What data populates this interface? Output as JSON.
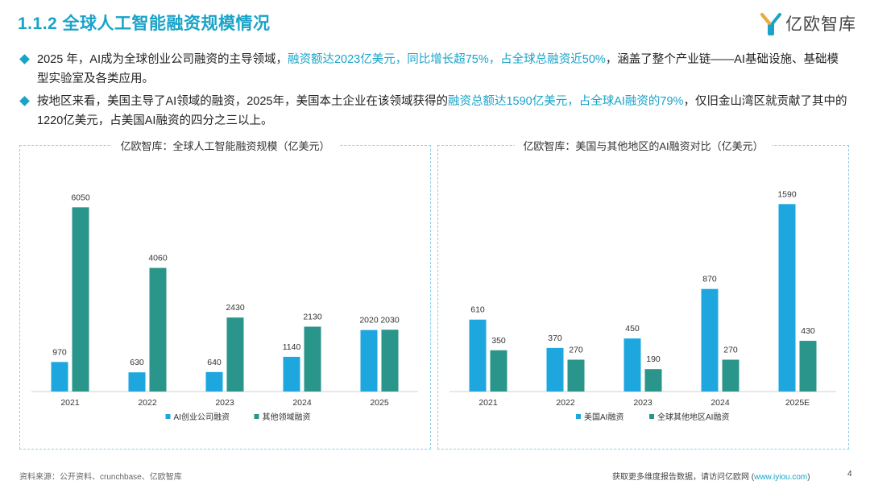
{
  "header": {
    "title": "1.1.2 全球人工智能融资规模情况",
    "logo_text": "亿欧智库"
  },
  "bullets": [
    {
      "segments": [
        {
          "text": "2025 年，AI成为全球创业公司融资的主导领域，",
          "hl": false
        },
        {
          "text": "融资额达2023亿美元，同比增长超75%，占全球总融资近50%",
          "hl": true
        },
        {
          "text": "，涵盖了整个产业链——AI基础设施、基础模型实验室及各类应用。",
          "hl": false
        }
      ]
    },
    {
      "segments": [
        {
          "text": "按地区来看，美国主导了AI领域的融资，2025年，美国本土企业在该领域获得的",
          "hl": false
        },
        {
          "text": "融资总额达1590亿美元，占全球AI融资的79%",
          "hl": true
        },
        {
          "text": "，仅旧金山湾区就贡献了其中的1220亿美元，占美国AI融资的四分之三以上。",
          "hl": false
        }
      ]
    }
  ],
  "colors": {
    "blue": "#1ea7df",
    "teal": "#2a958a",
    "accent": "#1aa3c8"
  },
  "chart_data": [
    {
      "type": "bar",
      "title": "亿欧智库：全球人工智能融资规模（亿美元）",
      "categories": [
        "2021",
        "2022",
        "2023",
        "2024",
        "2025"
      ],
      "series": [
        {
          "name": "AI创业公司融资",
          "color": "#1ea7df",
          "values": [
            970,
            630,
            640,
            1140,
            2020
          ]
        },
        {
          "name": "其他领域融资",
          "color": "#2a958a",
          "values": [
            6050,
            4060,
            2430,
            2130,
            2030
          ]
        }
      ],
      "ylim": [
        0,
        6350
      ],
      "legend": "bottom"
    },
    {
      "type": "bar",
      "title": "亿欧智库：美国与其他地区的AI融资对比（亿美元）",
      "categories": [
        "2021",
        "2022",
        "2023",
        "2024",
        "2025E"
      ],
      "series": [
        {
          "name": "美国AI融资",
          "color": "#1ea7df",
          "values": [
            610,
            370,
            450,
            870,
            1590
          ]
        },
        {
          "name": "全球其他地区AI融资",
          "color": "#2a958a",
          "values": [
            350,
            270,
            190,
            270,
            430
          ]
        }
      ],
      "ylim": [
        0,
        1640
      ],
      "legend": "bottom"
    }
  ],
  "footer": {
    "source": "资料来源：公开资料、crunchbase、亿欧智库",
    "cta_prefix": "获取更多维度报告数据，请访问亿欧网 (",
    "cta_link": "www.iyiou.com",
    "cta_suffix": ")",
    "page_number": "4"
  }
}
